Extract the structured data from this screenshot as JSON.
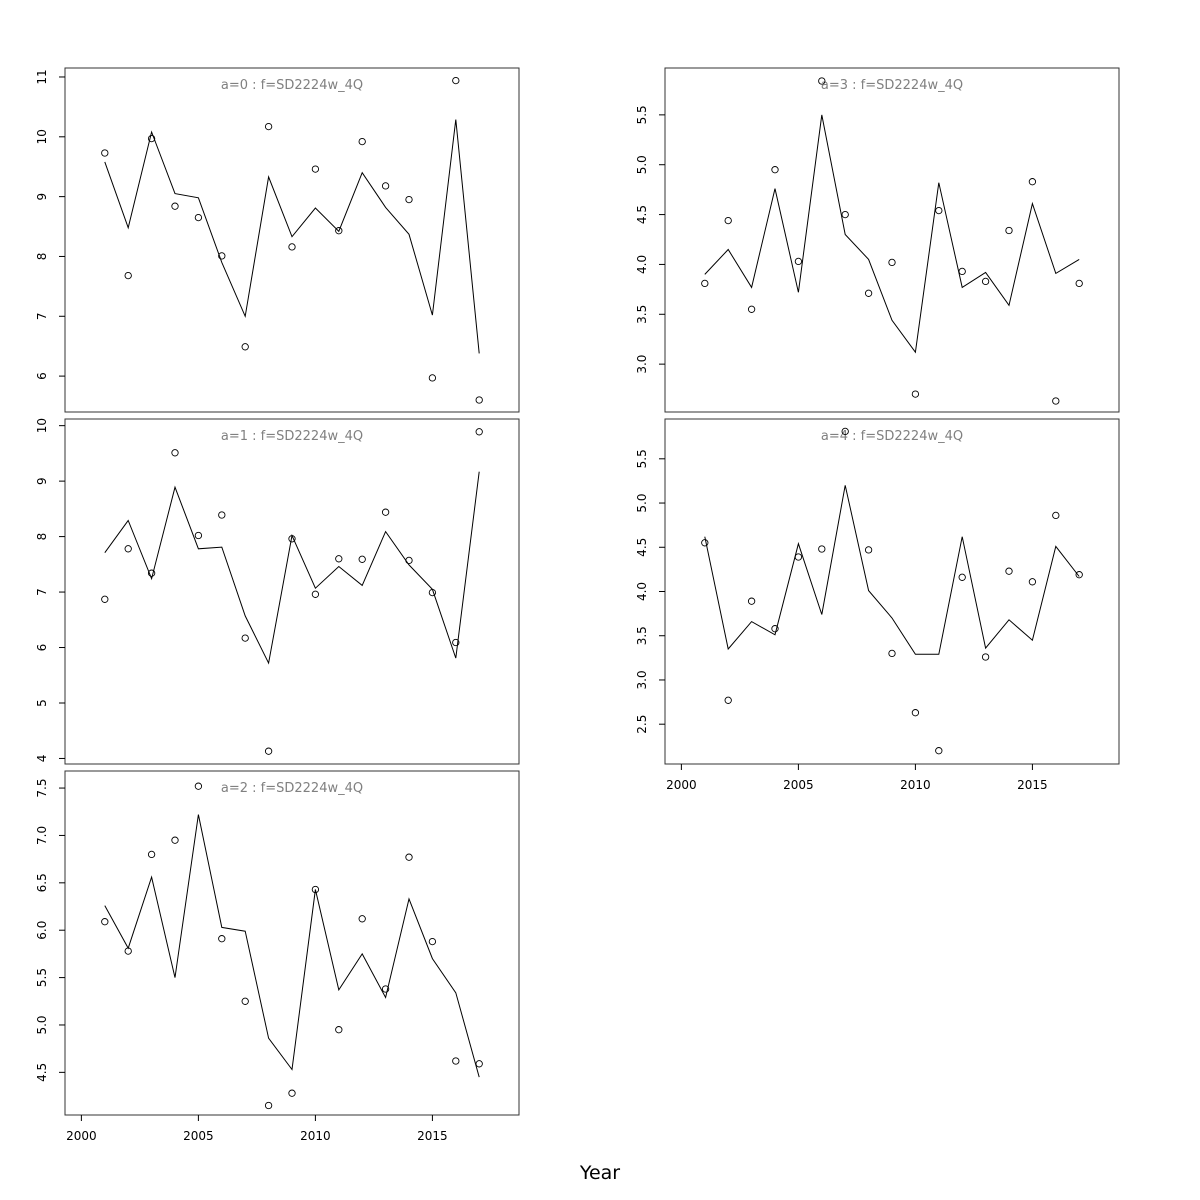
{
  "figure": {
    "xlabel": "Year"
  },
  "chart_data": [
    {
      "type": "line",
      "title": "a=0  :  f=SD2224w_4Q",
      "xlim": [
        1999.3,
        2018.7
      ],
      "ylim": [
        5.4,
        11.15
      ],
      "yticks": [
        "6",
        "7",
        "8",
        "9",
        "10",
        "11"
      ],
      "yticks_values": [
        6,
        7,
        8,
        9,
        10,
        11
      ],
      "xticks": [],
      "series": [
        {
          "x": [
            2001,
            2002,
            2003,
            2004,
            2005,
            2006,
            2007,
            2008,
            2009,
            2010,
            2011,
            2012,
            2013,
            2014,
            2015,
            2016,
            2017
          ],
          "values": [
            9.58,
            8.48,
            10.08,
            9.05,
            8.98,
            7.9,
            7.0,
            9.33,
            8.33,
            8.81,
            8.42,
            9.4,
            8.82,
            8.37,
            7.02,
            10.29,
            6.38
          ],
          "style": "line"
        },
        {
          "x": [
            2001,
            2002,
            2003,
            2004,
            2005,
            2006,
            2007,
            2008,
            2009,
            2010,
            2011,
            2012,
            2013,
            2014,
            2015,
            2016,
            2017
          ],
          "values": [
            9.73,
            7.68,
            9.97,
            8.84,
            8.65,
            8.01,
            6.49,
            10.17,
            8.16,
            9.46,
            8.43,
            9.92,
            9.18,
            8.95,
            5.97,
            10.94,
            5.6
          ],
          "style": "points"
        }
      ]
    },
    {
      "type": "line",
      "title": "a=1  :  f=SD2224w_4Q",
      "xlim": [
        1999.3,
        2018.7
      ],
      "ylim": [
        3.9,
        10.12
      ],
      "yticks": [
        "4",
        "5",
        "6",
        "7",
        "8",
        "9",
        "10"
      ],
      "yticks_values": [
        4,
        5,
        6,
        7,
        8,
        9,
        10
      ],
      "xticks": [],
      "series": [
        {
          "x": [
            2001,
            2002,
            2003,
            2004,
            2005,
            2006,
            2007,
            2008,
            2009,
            2010,
            2011,
            2012,
            2013,
            2014,
            2015,
            2016,
            2017
          ],
          "values": [
            7.71,
            8.29,
            7.24,
            8.89,
            7.78,
            7.81,
            6.57,
            5.72,
            8.02,
            7.07,
            7.46,
            7.12,
            8.09,
            7.49,
            7.05,
            5.81,
            9.17
          ],
          "style": "line"
        },
        {
          "x": [
            2001,
            2002,
            2003,
            2004,
            2005,
            2006,
            2007,
            2008,
            2009,
            2010,
            2011,
            2012,
            2013,
            2014,
            2015,
            2016,
            2017
          ],
          "values": [
            6.87,
            7.78,
            7.34,
            9.51,
            8.02,
            8.39,
            6.17,
            4.13,
            7.96,
            6.96,
            7.6,
            7.59,
            8.44,
            7.57,
            6.99,
            6.09,
            9.89
          ],
          "style": "points"
        }
      ]
    },
    {
      "type": "line",
      "title": "a=2  :  f=SD2224w_4Q",
      "xlim": [
        1999.3,
        2018.7
      ],
      "ylim": [
        4.05,
        7.68
      ],
      "yticks": [
        "4.5",
        "5.0",
        "5.5",
        "6.0",
        "6.5",
        "7.0",
        "7.5"
      ],
      "yticks_values": [
        4.5,
        5.0,
        5.5,
        6.0,
        6.5,
        7.0,
        7.5
      ],
      "xticks": [
        "2000",
        "2005",
        "2010",
        "2015"
      ],
      "xticks_values": [
        2000,
        2005,
        2010,
        2015
      ],
      "series": [
        {
          "x": [
            2001,
            2002,
            2003,
            2004,
            2005,
            2006,
            2007,
            2008,
            2009,
            2010,
            2011,
            2012,
            2013,
            2014,
            2015,
            2016,
            2017
          ],
          "values": [
            6.26,
            5.81,
            6.56,
            5.5,
            7.22,
            6.03,
            5.99,
            4.86,
            4.53,
            6.43,
            5.37,
            5.75,
            5.29,
            6.33,
            5.7,
            5.34,
            4.45
          ],
          "style": "line"
        },
        {
          "x": [
            2001,
            2002,
            2003,
            2004,
            2005,
            2006,
            2007,
            2008,
            2009,
            2010,
            2011,
            2012,
            2013,
            2014,
            2015,
            2016,
            2017
          ],
          "values": [
            6.09,
            5.78,
            6.8,
            6.95,
            7.52,
            5.91,
            5.25,
            4.15,
            4.28,
            6.43,
            4.95,
            6.12,
            5.38,
            6.77,
            5.88,
            4.62,
            4.59
          ],
          "style": "points"
        }
      ]
    },
    {
      "type": "line",
      "title": "a=3  :  f=SD2224w_4Q",
      "xlim": [
        1999.3,
        2018.7
      ],
      "ylim": [
        2.52,
        5.97
      ],
      "yticks": [
        "3.0",
        "3.5",
        "4.0",
        "4.5",
        "5.0",
        "5.5"
      ],
      "yticks_values": [
        3.0,
        3.5,
        4.0,
        4.5,
        5.0,
        5.5
      ],
      "xticks": [],
      "series": [
        {
          "x": [
            2001,
            2002,
            2003,
            2004,
            2005,
            2006,
            2007,
            2008,
            2009,
            2010,
            2011,
            2012,
            2013,
            2014,
            2015,
            2016,
            2017
          ],
          "values": [
            3.9,
            4.15,
            3.77,
            4.76,
            3.72,
            5.5,
            4.3,
            4.05,
            3.44,
            3.12,
            4.82,
            3.77,
            3.92,
            3.59,
            4.61,
            3.91,
            4.05
          ],
          "style": "line"
        },
        {
          "x": [
            2001,
            2002,
            2003,
            2004,
            2005,
            2006,
            2007,
            2008,
            2009,
            2010,
            2011,
            2012,
            2013,
            2014,
            2015,
            2016,
            2017
          ],
          "values": [
            3.81,
            4.44,
            3.55,
            4.95,
            4.03,
            5.84,
            4.5,
            3.71,
            4.02,
            2.7,
            4.54,
            3.93,
            3.83,
            4.34,
            4.83,
            2.63,
            3.81
          ],
          "style": "points"
        }
      ]
    },
    {
      "type": "line",
      "title": "a=4  :  f=SD2224w_4Q",
      "xlim": [
        1999.3,
        2018.7
      ],
      "ylim": [
        2.05,
        5.95
      ],
      "yticks": [
        "2.5",
        "3.0",
        "3.5",
        "4.0",
        "4.5",
        "5.0",
        "5.5"
      ],
      "yticks_values": [
        2.5,
        3.0,
        3.5,
        4.0,
        4.5,
        5.0,
        5.5
      ],
      "xticks": [
        "2000",
        "2005",
        "2010",
        "2015"
      ],
      "xticks_values": [
        2000,
        2005,
        2010,
        2015
      ],
      "series": [
        {
          "x": [
            2001,
            2002,
            2003,
            2004,
            2005,
            2006,
            2007,
            2008,
            2009,
            2010,
            2011,
            2012,
            2013,
            2014,
            2015,
            2016,
            2017
          ],
          "values": [
            4.62,
            3.35,
            3.66,
            3.51,
            4.54,
            3.74,
            5.2,
            4.01,
            3.7,
            3.29,
            3.29,
            4.62,
            3.36,
            3.68,
            3.45,
            4.51,
            4.17
          ],
          "style": "line"
        },
        {
          "x": [
            2001,
            2002,
            2003,
            2004,
            2005,
            2006,
            2007,
            2008,
            2009,
            2010,
            2011,
            2012,
            2013,
            2014,
            2015,
            2016,
            2017
          ],
          "values": [
            4.55,
            2.77,
            3.89,
            3.58,
            4.39,
            4.48,
            5.81,
            4.47,
            3.3,
            2.63,
            2.2,
            4.16,
            3.26,
            4.23,
            4.11,
            4.86,
            4.19
          ],
          "style": "points"
        }
      ]
    }
  ]
}
